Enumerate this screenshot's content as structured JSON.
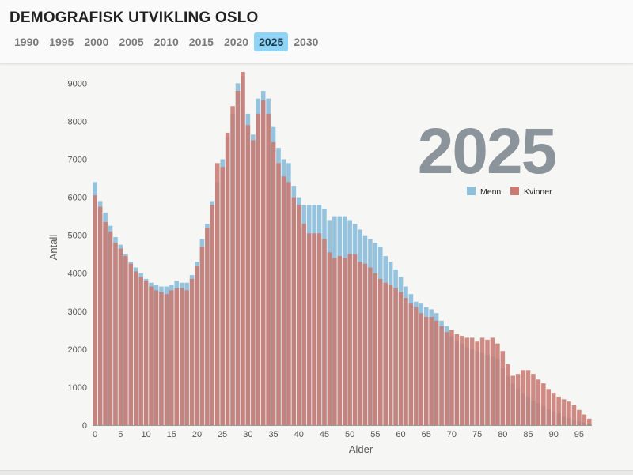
{
  "header": {
    "title": "DEMOGRAFISK UTVIKLING OSLO",
    "years": [
      "1990",
      "1995",
      "2000",
      "2005",
      "2010",
      "2015",
      "2020",
      "2025",
      "2030"
    ],
    "active_year": "2025"
  },
  "colors": {
    "men": "#8fbfdb",
    "women": "#c97b73",
    "active_tab": "#8fd3f5",
    "year_label": "#8b949b"
  },
  "chart_data": {
    "type": "bar",
    "big_label": "2025",
    "xlabel": "Alder",
    "ylabel": "Antall",
    "ylim": [
      0,
      9300
    ],
    "yticks": [
      0,
      1000,
      2000,
      3000,
      4000,
      5000,
      6000,
      7000,
      8000,
      9000
    ],
    "xticks": [
      0,
      5,
      10,
      15,
      20,
      25,
      30,
      35,
      40,
      45,
      50,
      55,
      60,
      65,
      70,
      75,
      80,
      85,
      90,
      95
    ],
    "legend": [
      "Menn",
      "Kvinner"
    ],
    "legend_position": "top-right",
    "categories": [
      0,
      1,
      2,
      3,
      4,
      5,
      6,
      7,
      8,
      9,
      10,
      11,
      12,
      13,
      14,
      15,
      16,
      17,
      18,
      19,
      20,
      21,
      22,
      23,
      24,
      25,
      26,
      27,
      28,
      29,
      30,
      31,
      32,
      33,
      34,
      35,
      36,
      37,
      38,
      39,
      40,
      41,
      42,
      43,
      44,
      45,
      46,
      47,
      48,
      49,
      50,
      51,
      52,
      53,
      54,
      55,
      56,
      57,
      58,
      59,
      60,
      61,
      62,
      63,
      64,
      65,
      66,
      67,
      68,
      69,
      70,
      71,
      72,
      73,
      74,
      75,
      76,
      77,
      78,
      79,
      80,
      81,
      82,
      83,
      84,
      85,
      86,
      87,
      88,
      89,
      90,
      91,
      92,
      93,
      94,
      95,
      96,
      97
    ],
    "series": [
      {
        "name": "Menn",
        "values": [
          6400,
          5900,
          5600,
          5250,
          4950,
          4750,
          4500,
          4300,
          4150,
          4000,
          3850,
          3750,
          3700,
          3650,
          3650,
          3700,
          3800,
          3750,
          3750,
          3950,
          4300,
          4900,
          5300,
          5900,
          6400,
          7000,
          7600,
          8200,
          9000,
          9200,
          8200,
          7650,
          8600,
          8800,
          8600,
          7850,
          7300,
          7000,
          6900,
          6300,
          6000,
          5800,
          5800,
          5800,
          5800,
          5700,
          5400,
          5500,
          5500,
          5500,
          5400,
          5300,
          5150,
          5000,
          4900,
          4800,
          4700,
          4450,
          4300,
          4100,
          3900,
          3650,
          3450,
          3250,
          3200,
          3100,
          3050,
          2950,
          2750,
          2600,
          2350,
          2200,
          2150,
          2050,
          2000,
          1950,
          1900,
          1850,
          1800,
          1750,
          1500,
          1300,
          1100,
          950,
          850,
          750,
          650,
          580,
          500,
          420,
          360,
          300,
          240,
          190,
          140,
          100,
          70,
          45
        ]
      },
      {
        "name": "Kvinner",
        "values": [
          6050,
          5750,
          5350,
          5100,
          4800,
          4650,
          4450,
          4250,
          4050,
          3900,
          3800,
          3650,
          3550,
          3500,
          3450,
          3550,
          3600,
          3600,
          3550,
          3850,
          4200,
          4700,
          5200,
          5800,
          6900,
          6800,
          7700,
          8400,
          8800,
          9300,
          7900,
          7500,
          8200,
          8550,
          8200,
          7450,
          6900,
          6550,
          6400,
          6000,
          5800,
          5300,
          5050,
          5050,
          5050,
          4900,
          4550,
          4400,
          4450,
          4400,
          4500,
          4500,
          4300,
          4250,
          4150,
          4000,
          3850,
          3750,
          3700,
          3600,
          3500,
          3350,
          3200,
          3100,
          2950,
          2850,
          2850,
          2750,
          2600,
          2450,
          2500,
          2400,
          2350,
          2300,
          2300,
          2200,
          2300,
          2250,
          2300,
          2150,
          1950,
          1600,
          1300,
          1350,
          1450,
          1450,
          1350,
          1200,
          1100,
          950,
          850,
          750,
          680,
          620,
          520,
          400,
          280,
          170
        ]
      }
    ]
  }
}
